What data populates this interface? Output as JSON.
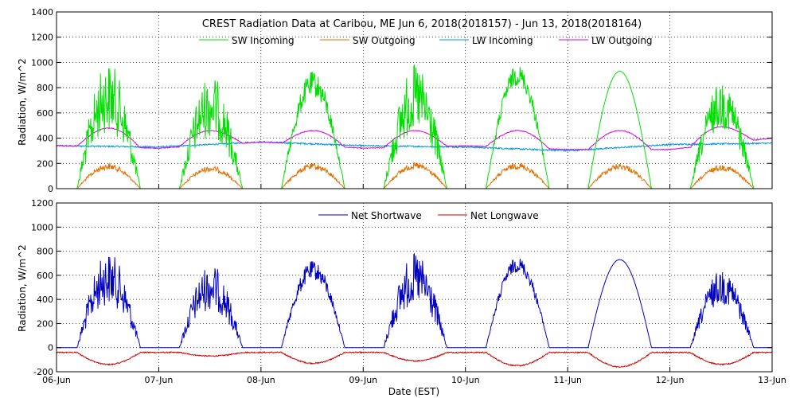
{
  "chart_data": [
    {
      "type": "line",
      "title": "CREST Radiation Data at Caribou, ME   Jun  6, 2018(2018157) - Jun 13, 2018(2018164)",
      "xlabel": "",
      "ylabel": "Radiation, W/m^2",
      "xlim": [
        0,
        7
      ],
      "ylim": [
        0,
        1400
      ],
      "yticks": [
        "0",
        "200",
        "400",
        "600",
        "800",
        "1000",
        "1200",
        "1400"
      ],
      "grid": true,
      "legend_position": "top",
      "series": [
        {
          "name": "SW Incoming",
          "color": "#00e000",
          "peaks": [
            1000,
            900,
            930,
            980,
            980,
            930,
            850
          ]
        },
        {
          "name": "SW Outgoing",
          "color": "#e07000",
          "peaks": [
            200,
            180,
            200,
            205,
            205,
            200,
            190
          ]
        },
        {
          "name": "LW Incoming",
          "color": "#0099e0",
          "levels": [
            340,
            330,
            370,
            340,
            330,
            300,
            350,
            360
          ]
        },
        {
          "name": "LW Outgoing",
          "color": "#e000e0",
          "levels": [
            340,
            320,
            370,
            320,
            340,
            310,
            310,
            400
          ],
          "peaks": [
            480,
            460,
            460,
            460,
            460,
            460,
            490
          ]
        }
      ]
    },
    {
      "type": "line",
      "title": "",
      "xlabel": "Date (EST)",
      "ylabel": "Radiation, W/m^2",
      "xlim": [
        0,
        7
      ],
      "ylim": [
        -200,
        1200
      ],
      "yticks": [
        "-200",
        "0",
        "200",
        "400",
        "600",
        "800",
        "1000",
        "1200"
      ],
      "grid": true,
      "legend_position": "top",
      "series": [
        {
          "name": "Net Shortwave",
          "color": "#0000c0",
          "peaks": [
            790,
            690,
            720,
            780,
            750,
            730,
            650
          ]
        },
        {
          "name": "Net Longwave",
          "color": "#d00000",
          "troughs": [
            -140,
            -70,
            -130,
            -110,
            -150,
            -160,
            -140
          ]
        }
      ]
    }
  ],
  "x_ticks": [
    "06-Jun",
    "07-Jun",
    "08-Jun",
    "09-Jun",
    "10-Jun",
    "11-Jun",
    "12-Jun",
    "13-Jun"
  ]
}
